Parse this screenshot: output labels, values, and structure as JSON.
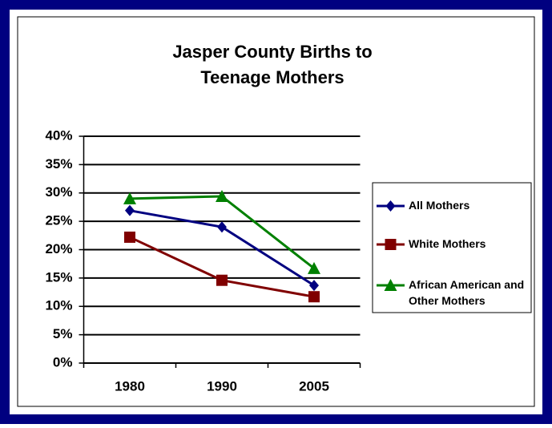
{
  "chart_data": {
    "type": "line",
    "title": "Jasper County Births to Teenage Mothers",
    "categories": [
      "1980",
      "1990",
      "2005"
    ],
    "series": [
      {
        "name": "All Mothers",
        "color": "#000080",
        "marker": "diamond",
        "values": [
          26.9,
          24.0,
          13.7
        ]
      },
      {
        "name": "White Mothers",
        "color": "#800000",
        "marker": "square",
        "values": [
          22.2,
          14.6,
          11.7
        ]
      },
      {
        "name": "African American and Other Mothers",
        "color": "#008000",
        "marker": "triangle",
        "values": [
          29.0,
          29.4,
          16.7
        ]
      }
    ],
    "ylim": [
      0,
      40
    ],
    "yticks": [
      {
        "value": 0,
        "label": "0%"
      },
      {
        "value": 5,
        "label": "5%"
      },
      {
        "value": 10,
        "label": "10%"
      },
      {
        "value": 15,
        "label": "15%"
      },
      {
        "value": 20,
        "label": "20%"
      },
      {
        "value": 25,
        "label": "25%"
      },
      {
        "value": 30,
        "label": "30%"
      },
      {
        "value": 35,
        "label": "35%"
      },
      {
        "value": 40,
        "label": "40%"
      }
    ],
    "grid": true,
    "legend": "right"
  }
}
